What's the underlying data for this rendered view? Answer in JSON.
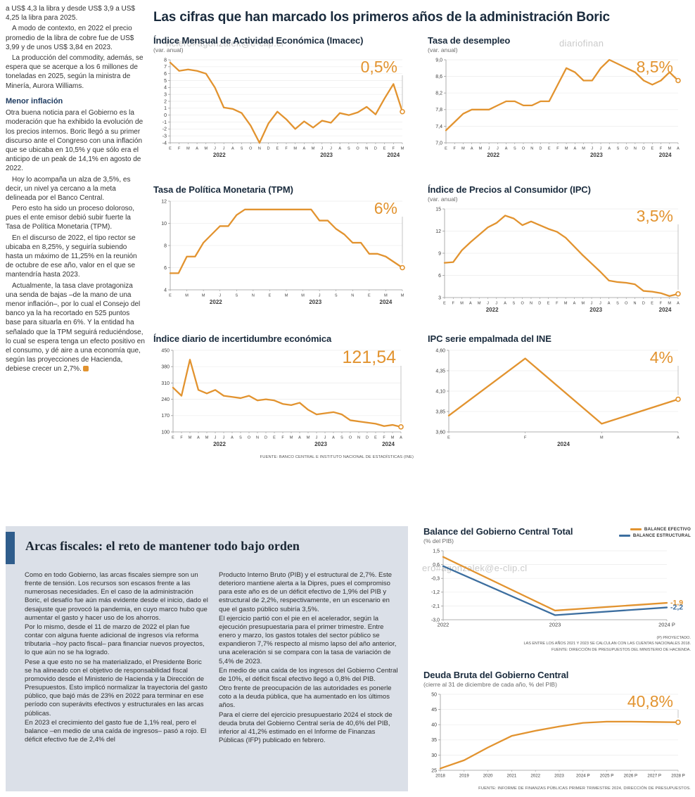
{
  "page": {
    "headline": "Las cifras que han marcado los primeros años de la administración Boric",
    "watermark1": "nciero#agonzalek@e-clip.cl",
    "watermark2": "diariofinan",
    "watermark3": "ero#agonzalek@e-clip.cl"
  },
  "colors": {
    "accent_orange": "#E2932F",
    "line_blue": "#3C6E9F",
    "headline_navy": "#1a2b3d",
    "panel_bg": "#dbe0e8",
    "panel_bar_blue": "#2f5d8c"
  },
  "left_column": {
    "top_paragraphs": [
      "a US$ 4,3 la libra y desde US$ 3,9 a US$ 4,25 la libra para 2025.",
      "A modo de contexto, en 2022 el precio promedio de la libra de cobre fue de US$ 3,99 y de unos US$ 3,84 en 2023.",
      "La producción del commodity, además, se espera que se acerque a los 6 millones de toneladas en 2025, según la ministra de Minería, Aurora Williams."
    ],
    "subhead": "Menor inflación",
    "inflation_paragraphs": [
      "Otra buena noticia para el Gobierno es la moderación que ha exhibido la evolución de los precios internos. Boric llegó a su primer discurso ante el Congreso con una inflación que se ubicaba en 10,5% y que sólo era el anticipo de un peak de 14,1% en agosto de 2022.",
      "Hoy lo acompaña un alza de 3,5%, es decir, un nivel ya cercano a la meta delineada por el Banco Central.",
      "Pero esto ha sido un proceso doloroso, pues el ente emisor debió subir fuerte la Tasa de Política Monetaria (TPM).",
      "En el discurso de 2022, el tipo rector se ubicaba en 8,25%, y seguiría subiendo hasta un máximo de 11,25% en la reunión de octubre de ese año, valor en el que se mantendría hasta 2023."
    ],
    "last_paragraph": "Actualmente, la tasa clave protagoniza una senda de bajas –de la mano de una menor inflación–, por lo cual el Consejo del banco ya la ha recortado en 525 puntos base para situarla en 6%. Y la entidad ha señalado que la TPM seguirá reduciéndose, lo cual se espera tenga un efecto positivo en el consumo, y dé aire a una economía que, según las proyecciones de Hacienda, debiese crecer un 2,7%."
  },
  "sources": {
    "main_charts": "FUENTE: BANCO CENTRAL E INSTITUTO NACIONAL DE ESTADÍSTICAS (INE)",
    "deuda": "FUENTE: INFORME DE FINANZAS PÚBLICAS PRIMER TRIMESTRE 2024, DIRECCIÓN DE PRESUPUESTOS."
  },
  "fiscal_section": {
    "headline": "Arcas fiscales: el reto de mantener todo bajo orden",
    "col1_paragraphs": [
      "Como en todo Gobierno, las arcas fiscales siempre son un frente de tensión. Los recursos son escasos frente a las numerosas necesidades. En el caso de la administración Boric, el desafío fue aún más evidente desde el inicio, dado el desajuste que provocó la pandemia, en cuyo marco hubo que aumentar el gasto y hacer uso de los ahorros.",
      "Por lo mismo, desde el 11 de marzo de 2022 el plan fue contar con alguna fuente adicional de ingresos vía reforma tributaria –hoy pacto fiscal– para financiar nuevos proyectos, lo que aún no se ha logrado.",
      "Pese a que esto no se ha materializado, el Presidente Boric se ha alineado con el objetivo de responsabilidad fiscal promovido desde el Ministerio de Hacienda y la Dirección de Presupuestos. Esto implicó normalizar la trayectoria del gasto público, que bajó más de 23% en 2022 para terminar en ese período con superávits efectivos y estructurales en las arcas públicas.",
      "En 2023 el crecimiento del gasto fue de 1,1% real, pero el balance –en medio de una caída de ingresos– pasó a rojo. El déficit efectivo fue de 2,4% del"
    ],
    "col2_paragraphs": [
      "Producto Interno Bruto (PIB) y el estructural de 2,7%. Este deterioro mantiene alerta a la Dipres, pues el compromiso para este año es de un déficit efectivo de 1,9% del PIB y estructural de 2,2%, respectivamente, en un escenario en que el gasto público subiría 3,5%.",
      "El ejercicio partió con el pie en el acelerador, según la ejecución presupuestaria para el primer trimestre. Entre enero y marzo, los gastos totales del sector público se expandieron 7,7% respecto al mismo lapso del año anterior, una aceleración si se compara con la tasa de variación de 5,4% de 2023.",
      "En medio de una caída de los ingresos del Gobierno Central de 10%, el déficit fiscal efectivo llegó a 0,8% del PIB.",
      "Otro frente de preocupación de las autoridades es ponerle coto a la deuda pública, que ha aumentado en los últimos años.",
      "Para el cierre del ejercicio presupuestario 2024 el stock de deuda bruta del Gobierno Central sería de 40,6% del PIB, inferior al 41,2% estimado en el Informe de Finanzas Públicas (IFP) publicado en febrero."
    ],
    "balance_legend": [
      {
        "label": "BALANCE EFECTIVO",
        "color": "#E2932F"
      },
      {
        "label": "BALANCE ESTRUCTURAL",
        "color": "#3C6E9F"
      }
    ],
    "balance_footnotes": [
      "(P) PROYECTADO.",
      "LAS ENTRE LOS AÑOS 2021 Y 2023 SE CALCULAN CON LAS CUENTAS NACIONALES 2018.",
      "FUENTE: DIRECCIÓN DE PRESUPUESTOS DEL MINISTERIO DE HACIENDA."
    ]
  },
  "chart_data": [
    {
      "id": "imacec",
      "type": "line",
      "title": "Índice Mensual de Actividad Económica (Imacec)",
      "subtitle": "(var. anual)",
      "big_value": "0,5%",
      "ylim": [
        -4,
        8
      ],
      "yticks": [
        "8",
        "7",
        "6",
        "5",
        "4",
        "3",
        "2",
        "1",
        "0",
        "-1",
        "-2",
        "-3",
        "-4"
      ],
      "x_labels": [
        "E",
        "F",
        "M",
        "A",
        "M",
        "J",
        "J",
        "A",
        "S",
        "O",
        "N",
        "D",
        "E",
        "F",
        "M",
        "A",
        "M",
        "J",
        "J",
        "A",
        "S",
        "O",
        "N",
        "D",
        "E",
        "F",
        "M"
      ],
      "year_labels": [
        {
          "text": "2022",
          "start": 0,
          "end": 11
        },
        {
          "text": "2023",
          "start": 12,
          "end": 23
        },
        {
          "text": "2024",
          "start": 24,
          "end": 26
        }
      ],
      "series": [
        {
          "name": "Imacec",
          "color": "#E2932F",
          "values": [
            7.6,
            6.4,
            6.6,
            6.4,
            6.0,
            4.0,
            1.1,
            0.9,
            0.3,
            -1.5,
            -4.0,
            -1.2,
            0.5,
            -0.6,
            -2.0,
            -0.9,
            -1.8,
            -0.8,
            -1.1,
            0.3,
            0.0,
            0.4,
            1.2,
            0.1,
            2.4,
            4.5,
            0.5
          ]
        }
      ]
    },
    {
      "id": "desempleo",
      "type": "line",
      "title": "Tasa de desempleo",
      "subtitle": "(var. anual)",
      "big_value": "8,5%",
      "ylim": [
        7.0,
        9.0
      ],
      "yticks": [
        "9,0",
        "8,6",
        "8,2",
        "7,8",
        "7,4",
        "7,0"
      ],
      "x_labels": [
        "E",
        "F",
        "M",
        "A",
        "M",
        "J",
        "J",
        "A",
        "S",
        "O",
        "N",
        "D",
        "E",
        "F",
        "M",
        "A",
        "M",
        "J",
        "J",
        "A",
        "S",
        "O",
        "N",
        "D",
        "E",
        "F",
        "M",
        "A"
      ],
      "year_labels": [
        {
          "text": "2022",
          "start": 0,
          "end": 11
        },
        {
          "text": "2023",
          "start": 12,
          "end": 23
        },
        {
          "text": "2024",
          "start": 24,
          "end": 27
        }
      ],
      "series": [
        {
          "name": "Tasa de desempleo",
          "color": "#E2932F",
          "values": [
            7.3,
            7.5,
            7.7,
            7.8,
            7.8,
            7.8,
            7.9,
            8.0,
            8.0,
            7.9,
            7.9,
            8.0,
            8.0,
            8.4,
            8.8,
            8.7,
            8.5,
            8.5,
            8.8,
            9.0,
            8.9,
            8.8,
            8.7,
            8.5,
            8.4,
            8.5,
            8.7,
            8.5
          ]
        }
      ]
    },
    {
      "id": "tpm",
      "type": "line",
      "title": "Tasa de Política Monetaria (TPM)",
      "subtitle": "",
      "big_value": "6%",
      "ylim": [
        4,
        12
      ],
      "yticks": [
        "12",
        "10",
        "8",
        "6",
        "4"
      ],
      "x_labels": [
        "E",
        "",
        "M",
        "",
        "M",
        "",
        "J",
        "",
        "S",
        "",
        "N",
        "",
        "E",
        "",
        "M",
        "",
        "M",
        "",
        "J",
        "",
        "S",
        "",
        "N",
        "",
        "E",
        "",
        "M",
        "",
        "M"
      ],
      "year_labels": [
        {
          "text": "2022",
          "start": 0,
          "end": 11
        },
        {
          "text": "2023",
          "start": 12,
          "end": 23
        },
        {
          "text": "2024",
          "start": 24,
          "end": 28
        }
      ],
      "series": [
        {
          "name": "TPM",
          "color": "#E2932F",
          "values": [
            5.5,
            5.5,
            7.0,
            7.0,
            8.25,
            9.0,
            9.75,
            9.75,
            10.75,
            11.25,
            11.25,
            11.25,
            11.25,
            11.25,
            11.25,
            11.25,
            11.25,
            11.25,
            10.25,
            10.25,
            9.5,
            9.0,
            8.25,
            8.25,
            7.25,
            7.25,
            7.0,
            6.5,
            6.0
          ]
        }
      ]
    },
    {
      "id": "ipc",
      "type": "line",
      "title": "Índice de Precios al Consumidor (IPC)",
      "subtitle": "(var. anual)",
      "big_value": "3,5%",
      "ylim": [
        3,
        15
      ],
      "yticks": [
        "15",
        "12",
        "9",
        "6",
        "3"
      ],
      "x_labels": [
        "E",
        "F",
        "M",
        "A",
        "M",
        "J",
        "J",
        "A",
        "S",
        "O",
        "N",
        "D",
        "E",
        "F",
        "M",
        "A",
        "M",
        "J",
        "J",
        "A",
        "S",
        "O",
        "N",
        "D",
        "E",
        "F",
        "M",
        "A"
      ],
      "year_labels": [
        {
          "text": "2022",
          "start": 0,
          "end": 11
        },
        {
          "text": "2023",
          "start": 12,
          "end": 23
        },
        {
          "text": "2024",
          "start": 24,
          "end": 27
        }
      ],
      "series": [
        {
          "name": "IPC",
          "color": "#E2932F",
          "values": [
            7.7,
            7.8,
            9.4,
            10.5,
            11.5,
            12.5,
            13.1,
            14.1,
            13.7,
            12.8,
            13.3,
            12.8,
            12.3,
            11.9,
            11.1,
            9.9,
            8.7,
            7.6,
            6.5,
            5.3,
            5.1,
            5.0,
            4.8,
            3.9,
            3.8,
            3.6,
            3.2,
            3.5
          ]
        }
      ]
    },
    {
      "id": "incertidumbre",
      "type": "line",
      "title": "Índice diario de incertidumbre económica",
      "subtitle": "",
      "big_value": "121,54",
      "ylim": [
        100,
        450
      ],
      "yticks": [
        "450",
        "380",
        "310",
        "240",
        "170",
        "100"
      ],
      "x_labels": [
        "E",
        "F",
        "M",
        "A",
        "M",
        "J",
        "J",
        "A",
        "S",
        "O",
        "N",
        "D",
        "E",
        "F",
        "M",
        "A",
        "M",
        "J",
        "J",
        "A",
        "S",
        "O",
        "N",
        "D",
        "E",
        "F",
        "M",
        "A"
      ],
      "year_labels": [
        {
          "text": "2022",
          "start": 0,
          "end": 11
        },
        {
          "text": "2023",
          "start": 12,
          "end": 23
        },
        {
          "text": "2024",
          "start": 24,
          "end": 27
        }
      ],
      "series": [
        {
          "name": "Incertidumbre económica",
          "color": "#E2932F",
          "values": [
            290,
            255,
            410,
            280,
            265,
            280,
            255,
            250,
            245,
            255,
            235,
            240,
            235,
            220,
            215,
            225,
            195,
            175,
            180,
            185,
            175,
            150,
            145,
            140,
            135,
            125,
            130,
            121.54
          ]
        }
      ]
    },
    {
      "id": "ipc-ine",
      "type": "line",
      "title": "IPC serie empalmada del INE",
      "subtitle": "",
      "big_value": "4%",
      "ylim": [
        3.6,
        4.6
      ],
      "yticks": [
        "4,60",
        "4,35",
        "4,10",
        "3,85",
        "3,60"
      ],
      "x_labels": [
        "E",
        "F",
        "M",
        "A"
      ],
      "year_labels": [
        {
          "text": "2024",
          "start": 0,
          "end": 3
        }
      ],
      "series": [
        {
          "name": "IPC serie empalmada",
          "color": "#E2932F",
          "values": [
            3.8,
            4.5,
            3.7,
            4.0
          ]
        }
      ]
    },
    {
      "id": "balance-gobierno-central",
      "type": "line",
      "title": "Balance del Gobierno Central Total",
      "subtitle": "(% del PIB)",
      "big_value": "",
      "ylim": [
        -3.0,
        1.5
      ],
      "yticks": [
        "1,5",
        "0,6",
        "-0,3",
        "-1,2",
        "-2,1",
        "-3,0"
      ],
      "x_labels": [
        "2022",
        "2023",
        "2024 P"
      ],
      "year_labels": [],
      "series": [
        {
          "name": "BALANCE EFECTIVO",
          "color": "#E2932F",
          "values": [
            1.1,
            -2.4,
            -1.9
          ]
        },
        {
          "name": "BALANCE ESTRUCTURAL",
          "color": "#3C6E9F",
          "values": [
            0.5,
            -2.7,
            -2.2
          ]
        }
      ],
      "end_labels": [
        {
          "text": "-1,9",
          "color": "#E2932F"
        },
        {
          "text": "-2,2",
          "color": "#3C6E9F"
        }
      ]
    },
    {
      "id": "deuda-bruta",
      "type": "line",
      "title": "Deuda Bruta del Gobierno Central",
      "subtitle": "(cierre al 31 de diciembre de cada año, % del PIB)",
      "big_value": "40,8%",
      "ylim": [
        25,
        50
      ],
      "yticks": [
        "50",
        "45",
        "40",
        "35",
        "30",
        "25"
      ],
      "x_labels": [
        "2018",
        "2019",
        "2020",
        "2021",
        "2022",
        "2023",
        "2024 P",
        "2025 P",
        "2026 P",
        "2027 P",
        "2028 P"
      ],
      "year_labels": [],
      "series": [
        {
          "name": "Deuda bruta",
          "color": "#E2932F",
          "values": [
            25.6,
            28.3,
            32.5,
            36.3,
            38.0,
            39.4,
            40.6,
            41.0,
            41.0,
            40.9,
            40.8
          ]
        }
      ]
    }
  ]
}
